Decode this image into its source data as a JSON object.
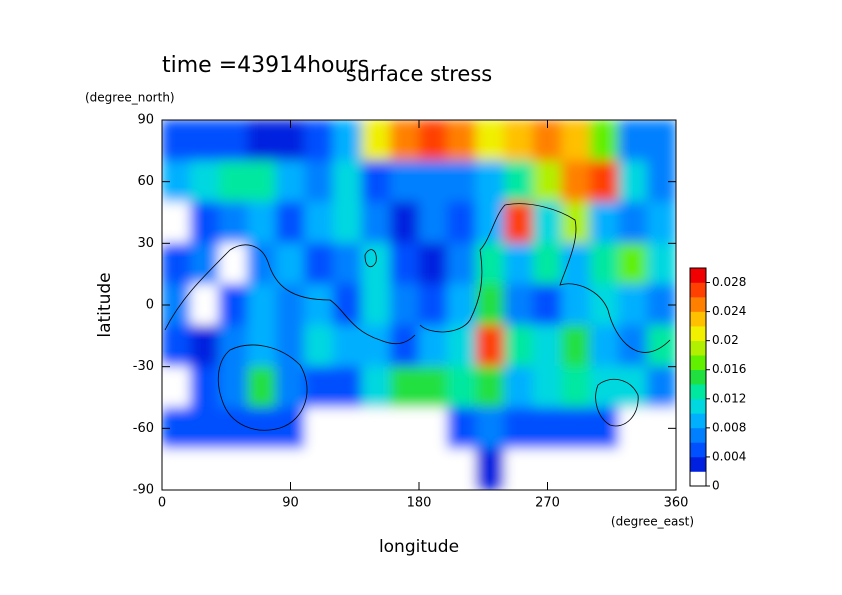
{
  "chart_data": {
    "type": "heatmap",
    "title": "surface stress",
    "subtitle": "time =43914hours",
    "x_label": "longitude",
    "x_unit": "(degree_east)",
    "y_label": "latitude",
    "y_unit": "(degree_north)",
    "xlim": [
      0,
      360
    ],
    "xticks": [
      0,
      90,
      180,
      270,
      360
    ],
    "ylim": [
      -90,
      90
    ],
    "yticks": [
      -90,
      -60,
      -30,
      0,
      30,
      60,
      90
    ],
    "clim": [
      0,
      0.03
    ],
    "cticks": [
      0,
      0.004,
      0.008,
      0.012,
      0.016,
      0.02,
      0.024,
      0.028
    ],
    "colors": [
      "#ffffff",
      "#0020e0",
      "#0050ff",
      "#0080ff",
      "#00b0ff",
      "#00d8e0",
      "#00e8a0",
      "#20e040",
      "#60f000",
      "#b0f000",
      "#f0f000",
      "#ffc000",
      "#ff8000",
      "#ff4000",
      "#f00000"
    ],
    "x": [
      10,
      30,
      50,
      70,
      90,
      110,
      130,
      150,
      170,
      190,
      210,
      230,
      250,
      270,
      290,
      310,
      330,
      350
    ],
    "y": [
      80,
      60,
      40,
      20,
      0,
      -20,
      -40,
      -60,
      -80
    ],
    "z": [
      [
        0.004,
        0.004,
        0.004,
        0.003,
        0.003,
        0.004,
        0.008,
        0.02,
        0.024,
        0.026,
        0.024,
        0.02,
        0.022,
        0.024,
        0.022,
        0.016,
        0.006,
        0.006
      ],
      [
        0.008,
        0.01,
        0.012,
        0.012,
        0.008,
        0.006,
        0.01,
        0.004,
        0.006,
        0.006,
        0.006,
        0.008,
        0.012,
        0.018,
        0.024,
        0.026,
        0.01,
        0.006
      ],
      [
        0,
        0.004,
        0.006,
        0.008,
        0.004,
        0.008,
        0.01,
        0.006,
        0.002,
        0.006,
        0.004,
        0.008,
        0.026,
        0.01,
        0.018,
        0.008,
        0.006,
        0.008
      ],
      [
        0.004,
        0.006,
        0.001,
        0.006,
        0.008,
        0.004,
        0.006,
        0.01,
        0.004,
        0.002,
        0.006,
        0.012,
        0.008,
        0.012,
        0.008,
        0.012,
        0.016,
        0.01
      ],
      [
        0.006,
        0.001,
        0.004,
        0.008,
        0.006,
        0.008,
        0.004,
        0.01,
        0.006,
        0.004,
        0.008,
        0.014,
        0.006,
        0.004,
        0.008,
        0.01,
        0.008,
        0.006
      ],
      [
        0.004,
        0.002,
        0.006,
        0.008,
        0.006,
        0.01,
        0.008,
        0.008,
        0.004,
        0.008,
        0.01,
        0.026,
        0.012,
        0.01,
        0.014,
        0.008,
        0.006,
        0.012
      ],
      [
        0,
        0.004,
        0.006,
        0.014,
        0.006,
        0.004,
        0.004,
        0.01,
        0.014,
        0.014,
        0.012,
        0.014,
        0.008,
        0.01,
        0.012,
        0.01,
        0.01,
        0.006
      ],
      [
        0.004,
        0.004,
        0.004,
        0.004,
        0.004,
        0,
        0,
        0,
        0,
        0,
        0.004,
        0.006,
        0.004,
        0.004,
        0.004,
        0.004,
        0,
        0
      ],
      [
        0,
        0,
        0,
        0,
        0,
        0,
        0,
        0,
        0,
        0,
        0,
        0.003,
        0,
        0,
        0,
        0,
        0,
        0
      ]
    ]
  }
}
